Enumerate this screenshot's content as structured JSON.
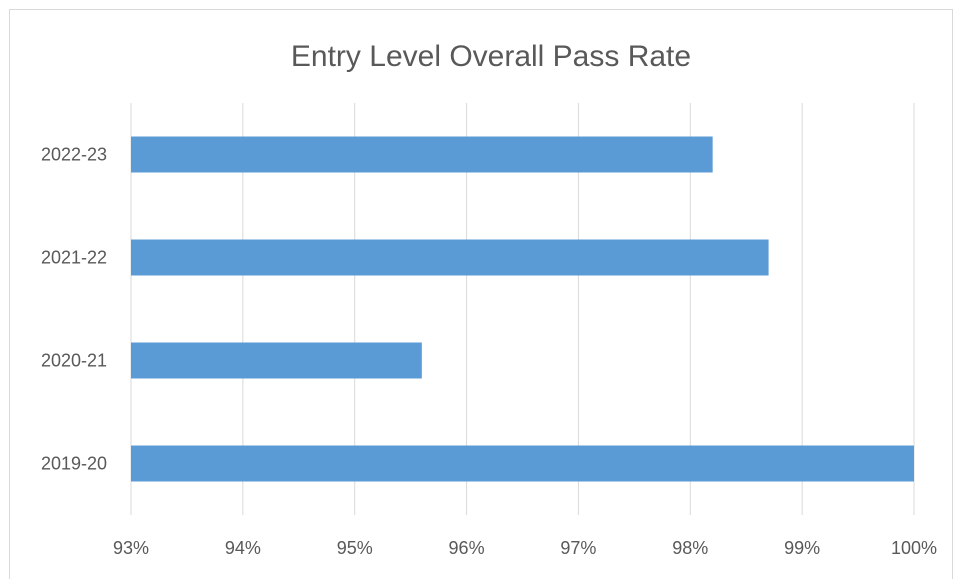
{
  "chart_data": {
    "type": "bar",
    "orientation": "horizontal",
    "title": "Entry Level  Overall Pass Rate",
    "categories": [
      "2022-23",
      "2021-22",
      "2020-21",
      "2019-20"
    ],
    "values": [
      98.2,
      98.7,
      95.6,
      100
    ],
    "xlim": [
      93,
      100
    ],
    "x_ticks": [
      93,
      94,
      95,
      96,
      97,
      98,
      99,
      100
    ],
    "x_tick_labels": [
      "93%",
      "94%",
      "95%",
      "96%",
      "97%",
      "98%",
      "99%",
      "100%"
    ],
    "xlabel": "",
    "ylabel": "",
    "grid": "vertical",
    "legend": "none",
    "bar_color": "#5b9bd5"
  }
}
